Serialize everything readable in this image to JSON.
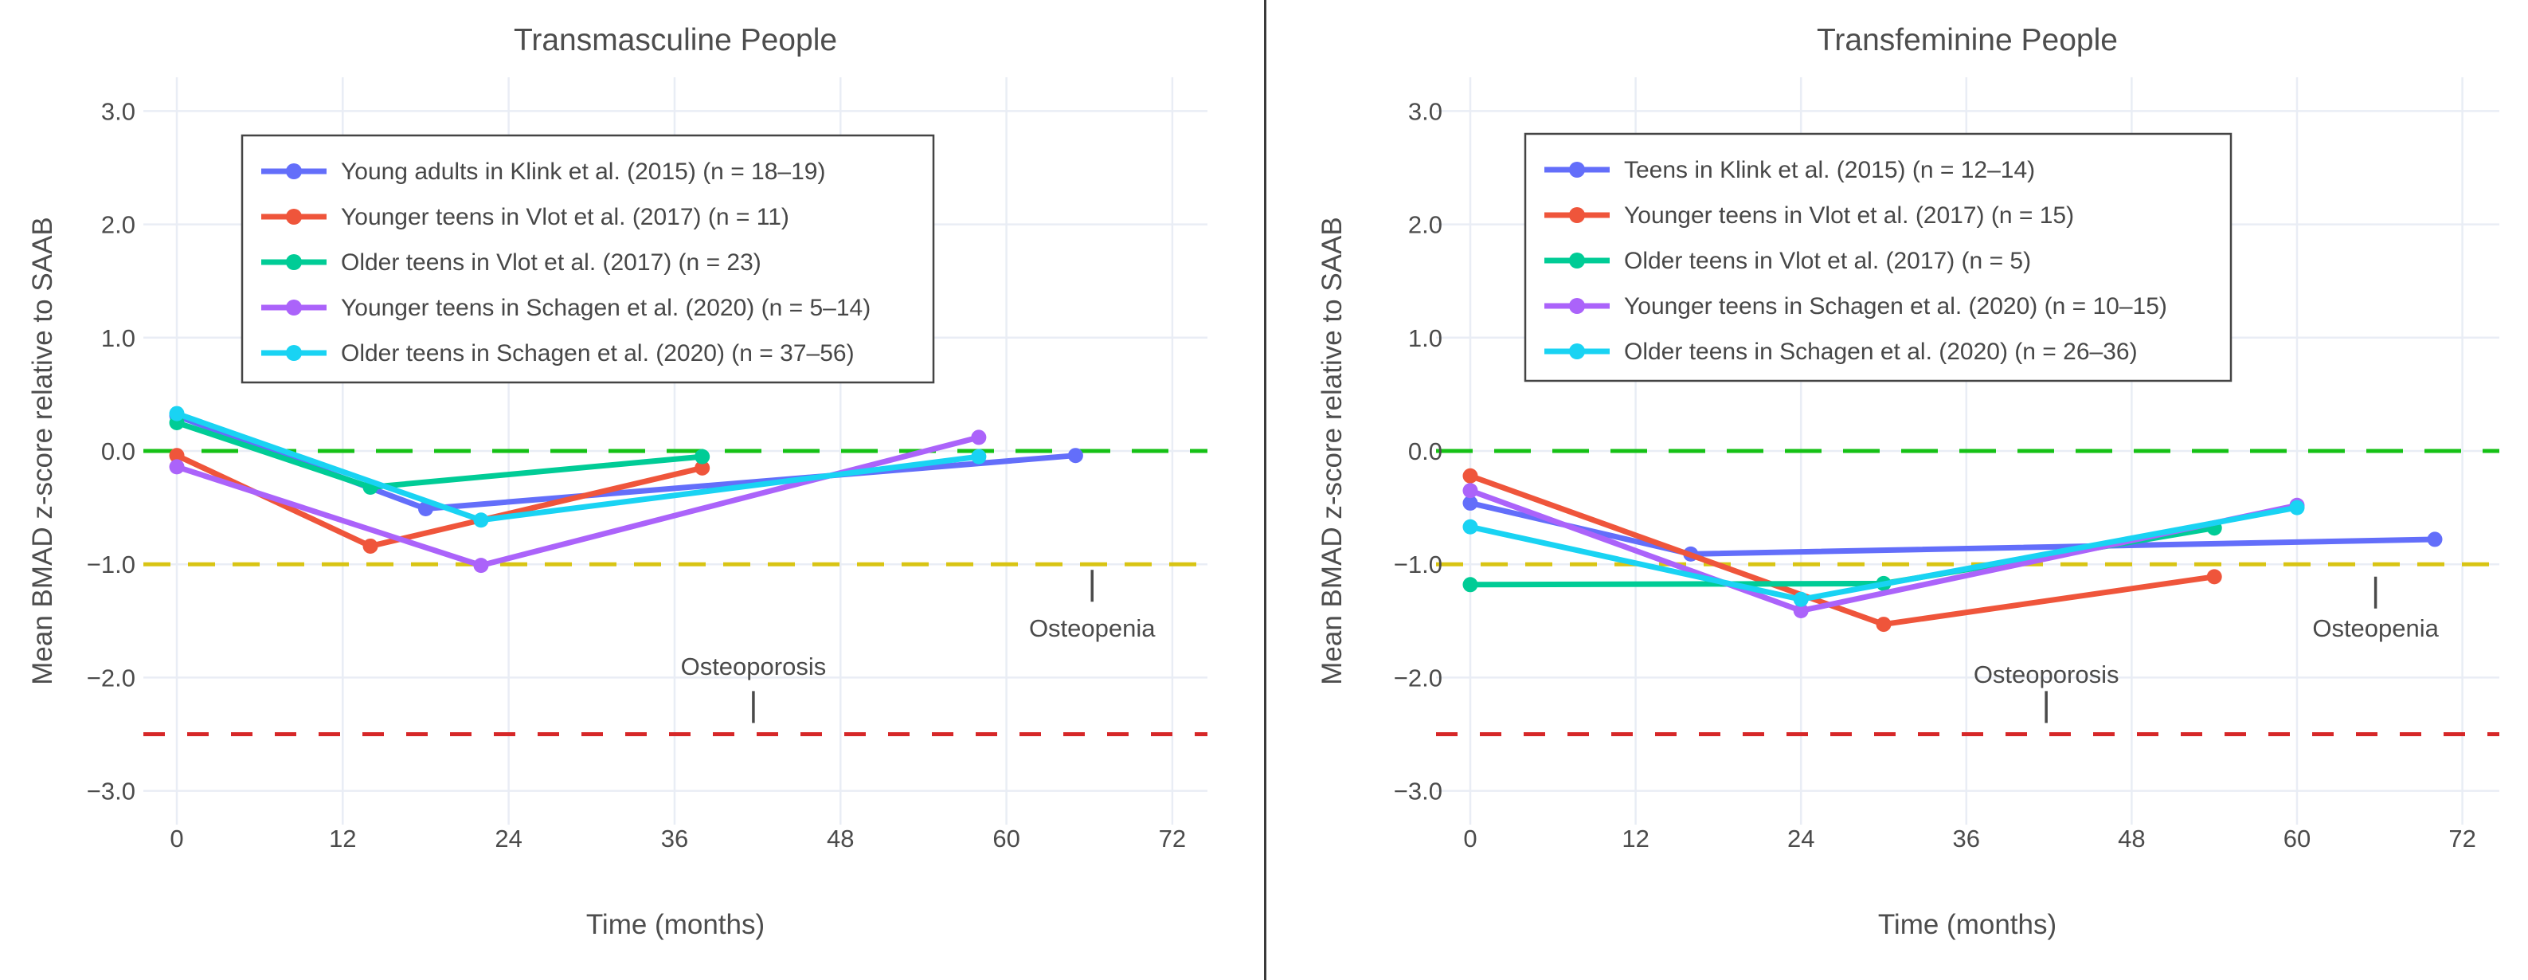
{
  "figure": {
    "background": "#ffffff",
    "divider_color": "#3a3a3a",
    "grid_color": "#e9edf5",
    "text_color": "#4b4b4b"
  },
  "chart_data": [
    {
      "type": "line",
      "title": "Transmasculine People",
      "xlabel": "Time (months)",
      "ylabel": "Mean BMAD z-score relative to SAAB",
      "xlim": [
        -3,
        75
      ],
      "ylim": [
        -3.3,
        3.3
      ],
      "grid": true,
      "legend_position": "top-left",
      "x_ticks": [
        0,
        12,
        24,
        36,
        48,
        60,
        72
      ],
      "y_ticks": [
        3,
        2,
        1,
        0,
        -1,
        -2,
        -3
      ],
      "x_tick_labels": [
        "0",
        "12",
        "24",
        "36",
        "48",
        "60",
        "72"
      ],
      "y_tick_labels": [
        "3.0",
        "2.0",
        "1.0",
        "0.0",
        "−1.0",
        "−2.0",
        "−3.0"
      ],
      "series": [
        {
          "name": "Young adults in Klink et al. (2015) (n = 18–19)",
          "color": "#636EFA",
          "x": [
            0,
            18,
            65
          ],
          "y": [
            0.31,
            -0.51,
            -0.04
          ]
        },
        {
          "name": "Younger teens in Vlot et al. (2017) (n = 11)",
          "color": "#EF553B",
          "x": [
            0,
            14,
            38
          ],
          "y": [
            -0.04,
            -0.84,
            -0.15
          ]
        },
        {
          "name": "Older teens in Vlot et al. (2017) (n = 23)",
          "color": "#00CC96",
          "x": [
            0,
            14,
            38
          ],
          "y": [
            0.25,
            -0.32,
            -0.05
          ]
        },
        {
          "name": "Younger teens in Schagen et al. (2020) (n = 5–14)",
          "color": "#AB63FA",
          "x": [
            0,
            22,
            58
          ],
          "y": [
            -0.14,
            -1.01,
            0.12
          ]
        },
        {
          "name": "Older teens in Schagen et al. (2020) (n = 37–56)",
          "color": "#19D3F3",
          "x": [
            0,
            22,
            58
          ],
          "y": [
            0.33,
            -0.61,
            -0.05
          ]
        }
      ],
      "ref_lines": [
        {
          "name": "zero-line",
          "y": 0,
          "color": "#15c115",
          "dash": "46 27"
        },
        {
          "name": "osteopenia-line",
          "y": -1,
          "color": "#d8c413",
          "dash": "34 22"
        },
        {
          "name": "osteoporosis-line",
          "y": -2.5,
          "color": "#d62728",
          "dash": "27 28"
        }
      ],
      "annotations": [
        {
          "name": "osteoporosis",
          "label": "Osteoporosis",
          "x": 41.7,
          "label_y": -1.9,
          "tick_y": -2.26
        },
        {
          "name": "osteopenia",
          "label": "Osteopenia",
          "x": 66.2,
          "label_y": -1.56,
          "tick_y": -1.19
        }
      ]
    },
    {
      "type": "line",
      "title": "Transfeminine People",
      "xlabel": "Time (months)",
      "ylabel": "Mean BMAD z-score relative to SAAB",
      "xlim": [
        -3,
        75
      ],
      "ylim": [
        -3.3,
        3.3
      ],
      "grid": true,
      "legend_position": "top-left",
      "x_ticks": [
        0,
        12,
        24,
        36,
        48,
        60,
        72
      ],
      "y_ticks": [
        3,
        2,
        1,
        0,
        -1,
        -2,
        -3
      ],
      "x_tick_labels": [
        "0",
        "12",
        "24",
        "36",
        "48",
        "60",
        "72"
      ],
      "y_tick_labels": [
        "3.0",
        "2.0",
        "1.0",
        "0.0",
        "−1.0",
        "−2.0",
        "−3.0"
      ],
      "series": [
        {
          "name": "Teens in Klink et al. (2015) (n = 12–14)",
          "color": "#636EFA",
          "x": [
            0,
            16,
            70
          ],
          "y": [
            -0.46,
            -0.91,
            -0.78
          ]
        },
        {
          "name": "Younger teens in Vlot et al. (2017) (n = 15)",
          "color": "#EF553B",
          "x": [
            0,
            30,
            54
          ],
          "y": [
            -0.22,
            -1.53,
            -1.11
          ]
        },
        {
          "name": "Older teens in Vlot et al. (2017) (n = 5)",
          "color": "#00CC96",
          "x": [
            0,
            30,
            54
          ],
          "y": [
            -1.18,
            -1.17,
            -0.68
          ]
        },
        {
          "name": "Younger teens in Schagen et al. (2020) (n = 10–15)",
          "color": "#AB63FA",
          "x": [
            0,
            24,
            60
          ],
          "y": [
            -0.35,
            -1.41,
            -0.48
          ]
        },
        {
          "name": "Older teens in Schagen et al. (2020) (n = 26–36)",
          "color": "#19D3F3",
          "x": [
            0,
            24,
            60
          ],
          "y": [
            -0.67,
            -1.31,
            -0.5
          ]
        }
      ],
      "ref_lines": [
        {
          "name": "zero-line",
          "y": 0,
          "color": "#15c115",
          "dash": "46 27"
        },
        {
          "name": "osteopenia-line",
          "y": -1,
          "color": "#d8c413",
          "dash": "34 22"
        },
        {
          "name": "osteoporosis-line",
          "y": -2.5,
          "color": "#d62728",
          "dash": "27 28"
        }
      ],
      "annotations": [
        {
          "name": "osteoporosis",
          "label": "Osteoporosis",
          "x": 41.8,
          "label_y": -1.97,
          "tick_y": -2.26
        },
        {
          "name": "osteopenia",
          "label": "Osteopenia",
          "x": 65.7,
          "label_y": -1.56,
          "tick_y": -1.25
        }
      ]
    }
  ]
}
